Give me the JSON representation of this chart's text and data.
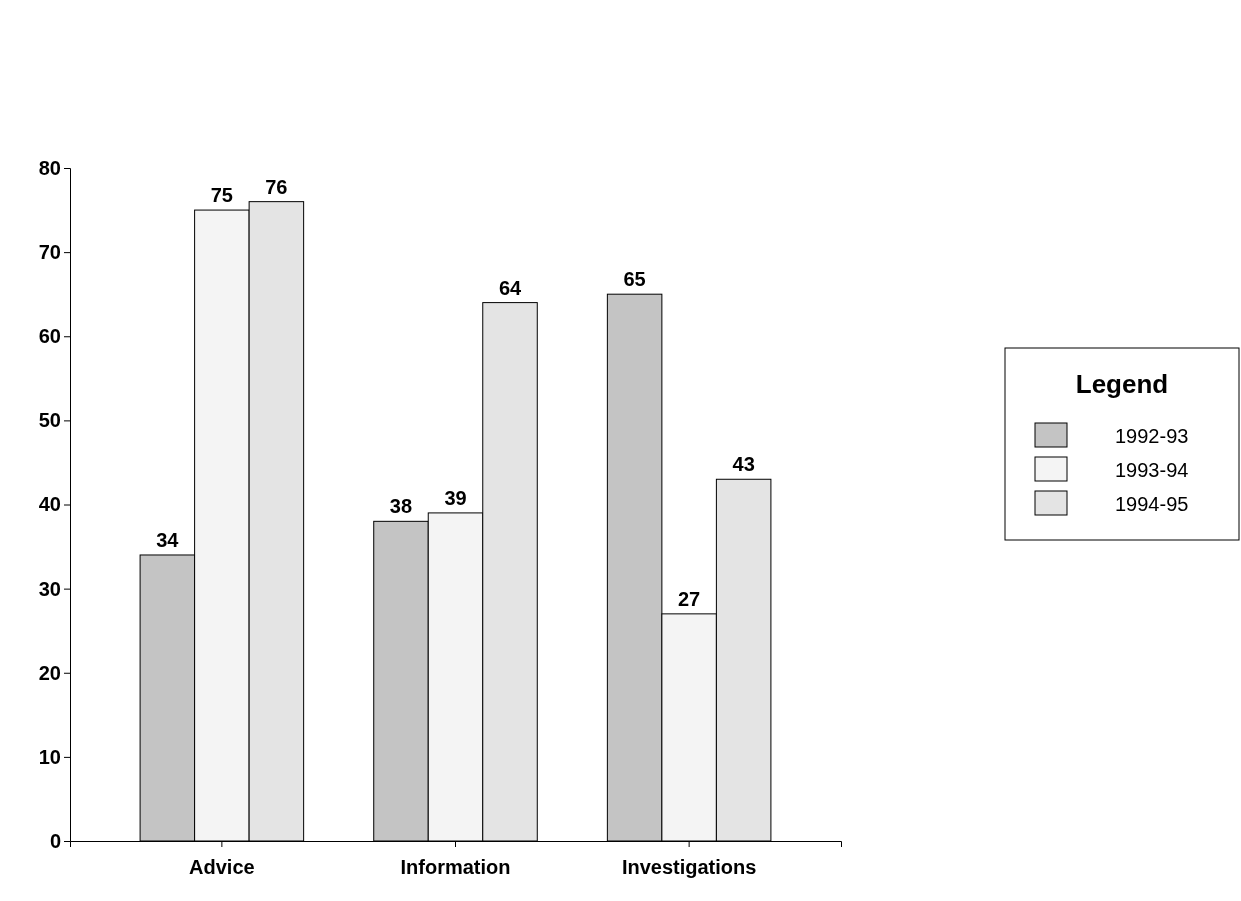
{
  "chart_data": {
    "type": "bar",
    "categories": [
      "Advice",
      "Information",
      "Investigations"
    ],
    "series": [
      {
        "name": "1992-93",
        "color": "#c4c4c4",
        "values": [
          34,
          38,
          65
        ]
      },
      {
        "name": "1993-94",
        "color": "#f4f4f4",
        "values": [
          75,
          39,
          27
        ]
      },
      {
        "name": "1994-95",
        "color": "#e4e4e4",
        "values": [
          76,
          64,
          43
        ]
      }
    ],
    "ylim": [
      0,
      80
    ],
    "yticks": [
      0,
      10,
      20,
      30,
      40,
      50,
      60,
      70,
      80
    ],
    "data_labels": true,
    "legend": "right",
    "legend_title": "Legend",
    "grid": false
  }
}
